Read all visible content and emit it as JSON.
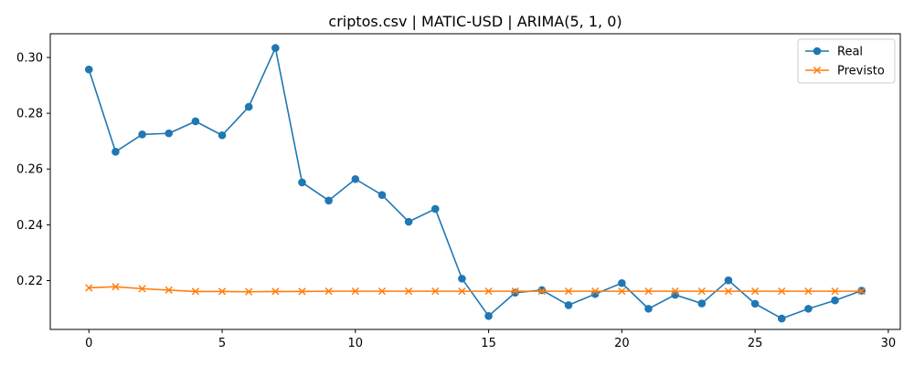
{
  "chart_data": {
    "type": "line",
    "title": "criptos.csv | MATIC-USD | ARIMA(5, 1, 0)",
    "xlabel": "",
    "ylabel": "",
    "xlim": [
      -1.45,
      30.45
    ],
    "ylim": [
      0.2025,
      0.3085
    ],
    "x_ticks": [
      0,
      5,
      10,
      15,
      20,
      25,
      30
    ],
    "y_ticks": [
      0.22,
      0.24,
      0.26,
      0.28,
      0.3
    ],
    "grid": false,
    "legend_position": "top-right",
    "x": [
      0,
      1,
      2,
      3,
      4,
      5,
      6,
      7,
      8,
      9,
      10,
      11,
      12,
      13,
      14,
      15,
      16,
      17,
      18,
      19,
      20,
      21,
      22,
      23,
      24,
      25,
      26,
      27,
      28,
      29
    ],
    "series": [
      {
        "name": "Real",
        "color": "#1f77b4",
        "marker": "circle",
        "values": [
          0.2957,
          0.2662,
          0.2724,
          0.2728,
          0.2771,
          0.2721,
          0.2823,
          0.3034,
          0.2552,
          0.2487,
          0.2564,
          0.2507,
          0.2411,
          0.2457,
          0.2207,
          0.2073,
          0.2157,
          0.2166,
          0.2112,
          0.2152,
          0.2191,
          0.2099,
          0.2149,
          0.2118,
          0.2201,
          0.2117,
          0.2064,
          0.2099,
          0.2129,
          0.2164
        ]
      },
      {
        "name": "Previsto",
        "color": "#ff7f0e",
        "marker": "x",
        "values": [
          0.2174,
          0.2178,
          0.2171,
          0.2166,
          0.2161,
          0.2161,
          0.216,
          0.2161,
          0.2161,
          0.2162,
          0.2162,
          0.2162,
          0.2162,
          0.2162,
          0.2162,
          0.2162,
          0.2162,
          0.2162,
          0.2162,
          0.2162,
          0.2162,
          0.2162,
          0.2162,
          0.2162,
          0.2162,
          0.2162,
          0.2162,
          0.2162,
          0.2162,
          0.2162
        ]
      }
    ]
  }
}
